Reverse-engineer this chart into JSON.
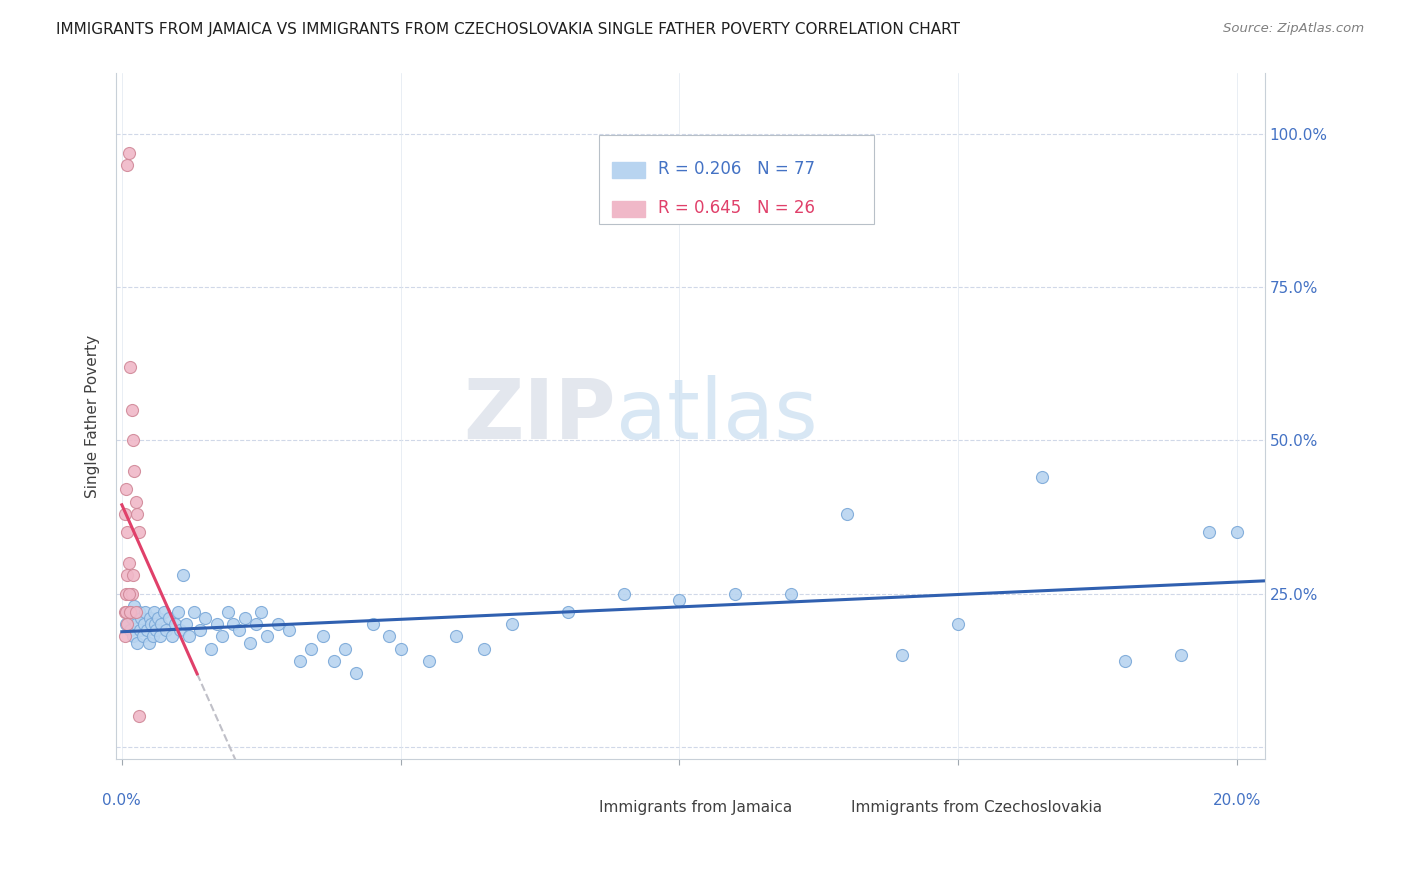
{
  "title": "IMMIGRANTS FROM JAMAICA VS IMMIGRANTS FROM CZECHOSLOVAKIA SINGLE FATHER POVERTY CORRELATION CHART",
  "source": "Source: ZipAtlas.com",
  "ylabel": "Single Father Poverty",
  "ytick_vals": [
    0.0,
    0.25,
    0.5,
    0.75,
    1.0
  ],
  "ytick_labels_right": [
    "",
    "25.0%",
    "50.0%",
    "75.0%",
    "100.0%"
  ],
  "xlim": [
    -0.001,
    0.205
  ],
  "ylim": [
    -0.02,
    1.1
  ],
  "legend_r1": "R = 0.206",
  "legend_n1": "N = 77",
  "legend_r2": "R = 0.645",
  "legend_n2": "N = 26",
  "color_jamaica": "#b8d4f0",
  "color_czecho": "#f0b8c8",
  "color_jamaica_line": "#3060b0",
  "color_czecho_line": "#e0406a",
  "color_czecho_dash": "#c0c0c8",
  "watermark_zip": "ZIP",
  "watermark_atlas": "atlas",
  "jamaica_x": [
    0.0008,
    0.0012,
    0.0015,
    0.0018,
    0.002,
    0.0022,
    0.0025,
    0.0028,
    0.003,
    0.0032,
    0.0035,
    0.0038,
    0.004,
    0.0042,
    0.0045,
    0.0048,
    0.005,
    0.0052,
    0.0055,
    0.0058,
    0.006,
    0.0062,
    0.0065,
    0.0068,
    0.007,
    0.0075,
    0.008,
    0.0085,
    0.009,
    0.0095,
    0.01,
    0.0105,
    0.011,
    0.0115,
    0.012,
    0.013,
    0.014,
    0.015,
    0.016,
    0.017,
    0.018,
    0.019,
    0.02,
    0.021,
    0.022,
    0.023,
    0.024,
    0.025,
    0.026,
    0.028,
    0.03,
    0.032,
    0.034,
    0.036,
    0.038,
    0.04,
    0.042,
    0.045,
    0.048,
    0.05,
    0.055,
    0.06,
    0.065,
    0.07,
    0.08,
    0.09,
    0.1,
    0.12,
    0.13,
    0.15,
    0.165,
    0.18,
    0.19,
    0.195,
    0.2,
    0.11,
    0.14
  ],
  "jamaica_y": [
    0.2,
    0.22,
    0.19,
    0.21,
    0.18,
    0.23,
    0.2,
    0.17,
    0.22,
    0.19,
    0.21,
    0.18,
    0.2,
    0.22,
    0.19,
    0.17,
    0.21,
    0.2,
    0.18,
    0.22,
    0.2,
    0.19,
    0.21,
    0.18,
    0.2,
    0.22,
    0.19,
    0.21,
    0.18,
    0.2,
    0.22,
    0.19,
    0.28,
    0.2,
    0.18,
    0.22,
    0.19,
    0.21,
    0.16,
    0.2,
    0.18,
    0.22,
    0.2,
    0.19,
    0.21,
    0.17,
    0.2,
    0.22,
    0.18,
    0.2,
    0.19,
    0.14,
    0.16,
    0.18,
    0.14,
    0.16,
    0.12,
    0.2,
    0.18,
    0.16,
    0.14,
    0.18,
    0.16,
    0.2,
    0.22,
    0.25,
    0.24,
    0.25,
    0.38,
    0.2,
    0.44,
    0.14,
    0.15,
    0.35,
    0.35,
    0.25,
    0.15
  ],
  "czecho_x": [
    0.001,
    0.0012,
    0.0015,
    0.0018,
    0.002,
    0.0022,
    0.0025,
    0.0028,
    0.003,
    0.0005,
    0.0008,
    0.001,
    0.0012,
    0.0015,
    0.0018,
    0.002,
    0.0005,
    0.0008,
    0.001,
    0.0012,
    0.0015,
    0.0005,
    0.0008,
    0.001,
    0.0025,
    0.003
  ],
  "czecho_y": [
    0.95,
    0.97,
    0.62,
    0.55,
    0.5,
    0.45,
    0.4,
    0.38,
    0.35,
    0.22,
    0.25,
    0.28,
    0.3,
    0.22,
    0.25,
    0.28,
    0.18,
    0.22,
    0.2,
    0.25,
    0.22,
    0.38,
    0.42,
    0.35,
    0.22,
    0.05
  ],
  "czecho_trend_x0": 0.0,
  "czecho_trend_x1": 0.0135,
  "czecho_trend_xdash0": 0.0135,
  "czecho_trend_xdash1": 0.022,
  "jamaica_trend_x0": 0.0,
  "jamaica_trend_x1": 0.205
}
